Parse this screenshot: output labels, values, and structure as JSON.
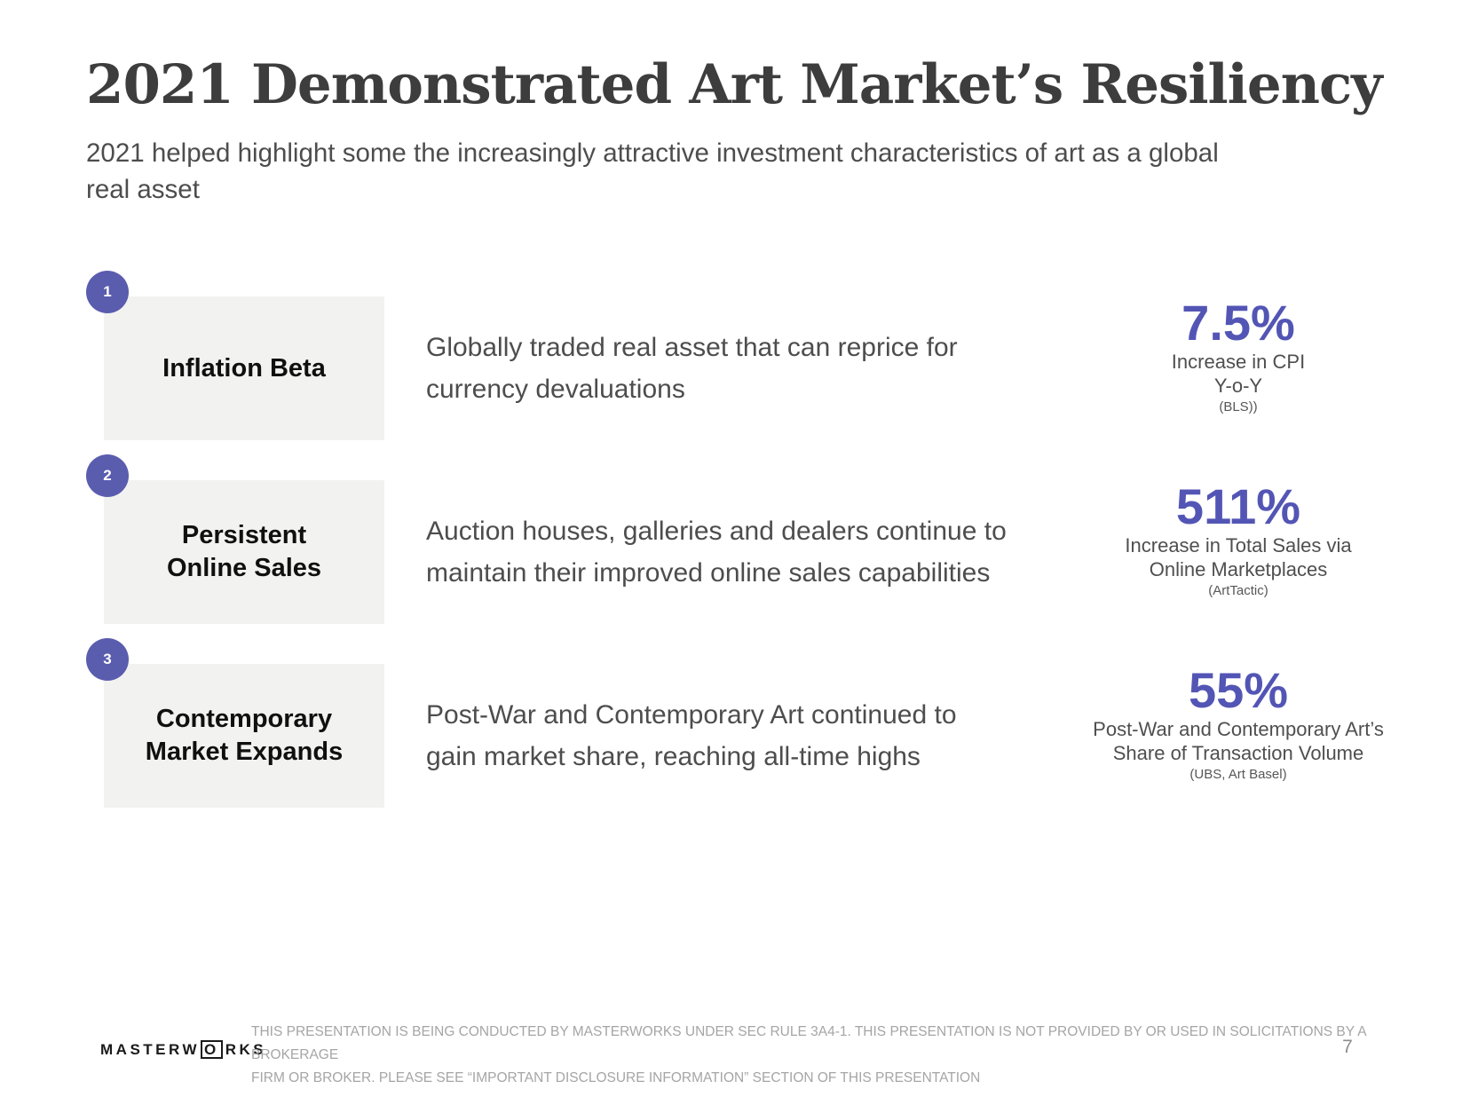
{
  "slide": {
    "title": "2021 Demonstrated Art Market’s Resiliency",
    "subtitle_lines": [
      "2021 helped highlight some the increasingly attractive investment characteristics of art as a global",
      "real asset"
    ]
  },
  "colors": {
    "accent_purple": "#5355b5",
    "badge_purple": "#5a5cae",
    "keybox_gray": "#f2f2f1",
    "title_dark": "#3d3d3d",
    "body_gray": "#4d4d4d",
    "footer_gray": "#a5a5a5"
  },
  "rows": [
    {
      "number": "1",
      "label_lines": [
        "Inflation Beta",
        ""
      ],
      "description_lines": [
        "Globally traded real asset that can reprice for",
        "currency devaluations"
      ],
      "stat_value": "7.5%",
      "stat_caption_lines": [
        "Increase in CPI",
        "Y-o-Y"
      ],
      "stat_source": "(BLS))"
    },
    {
      "number": "2",
      "label_lines": [
        "Persistent",
        "Online Sales"
      ],
      "description_lines": [
        "Auction houses, galleries and dealers continue to",
        "maintain their improved online sales capabilities"
      ],
      "stat_value": "511%",
      "stat_caption_lines": [
        "Increase in Total Sales via",
        "Online Marketplaces"
      ],
      "stat_source": "(ArtTactic)"
    },
    {
      "number": "3",
      "label_lines": [
        "Contemporary",
        "Market Expands"
      ],
      "description_lines": [
        "Post-War and Contemporary Art continued to",
        "gain market share, reaching all-time highs"
      ],
      "stat_value": "55%",
      "stat_caption_lines": [
        "Post-War and Contemporary Art’s",
        "Share of Transaction Volume"
      ],
      "stat_source": "(UBS, Art Basel)"
    }
  ],
  "footer": {
    "logo_left": "MASTERW",
    "logo_o": "O",
    "logo_right": "RKS",
    "disclaimer_line1": "THIS PRESENTATION  IS BEING CONDUCTED BY MASTERWORKS UNDER SEC RULE 3A4-1. THIS PRESENTATION  IS NOT PROVIDED BY OR USED IN SOLICITATIONS BY A BROKERAGE",
    "disclaimer_line2": "FIRM OR BROKER. PLEASE SEE “IMPORTANT DISCLOSURE INFORMATION” SECTION OF THIS PRESENTATION",
    "page_number": "7"
  }
}
